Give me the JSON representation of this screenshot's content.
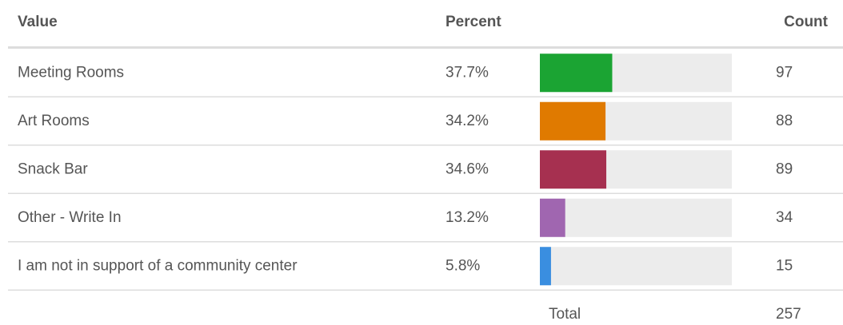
{
  "table": {
    "header": [
      "Value",
      "Percent",
      "Count"
    ],
    "percent_scale": [
      0,
      100
    ],
    "rows": [
      {
        "value": "Meeting Rooms",
        "percent": 37.7,
        "percent_label": "37.7%",
        "count": 97,
        "color": "#1ba433"
      },
      {
        "value": "Art Rooms",
        "percent": 34.2,
        "percent_label": "34.2%",
        "count": 88,
        "color": "#e07a00"
      },
      {
        "value": "Snack Bar",
        "percent": 34.6,
        "percent_label": "34.6%",
        "count": 89,
        "color": "#a63050"
      },
      {
        "value": "Other - Write In",
        "percent": 13.2,
        "percent_label": "13.2%",
        "count": 34,
        "color": "#a066b0"
      },
      {
        "value": "I am not in support of a community center",
        "percent": 5.8,
        "percent_label": "5.8%",
        "count": 15,
        "color": "#3a8ee0"
      }
    ],
    "footer": {
      "label": "Total",
      "count": 257
    }
  }
}
